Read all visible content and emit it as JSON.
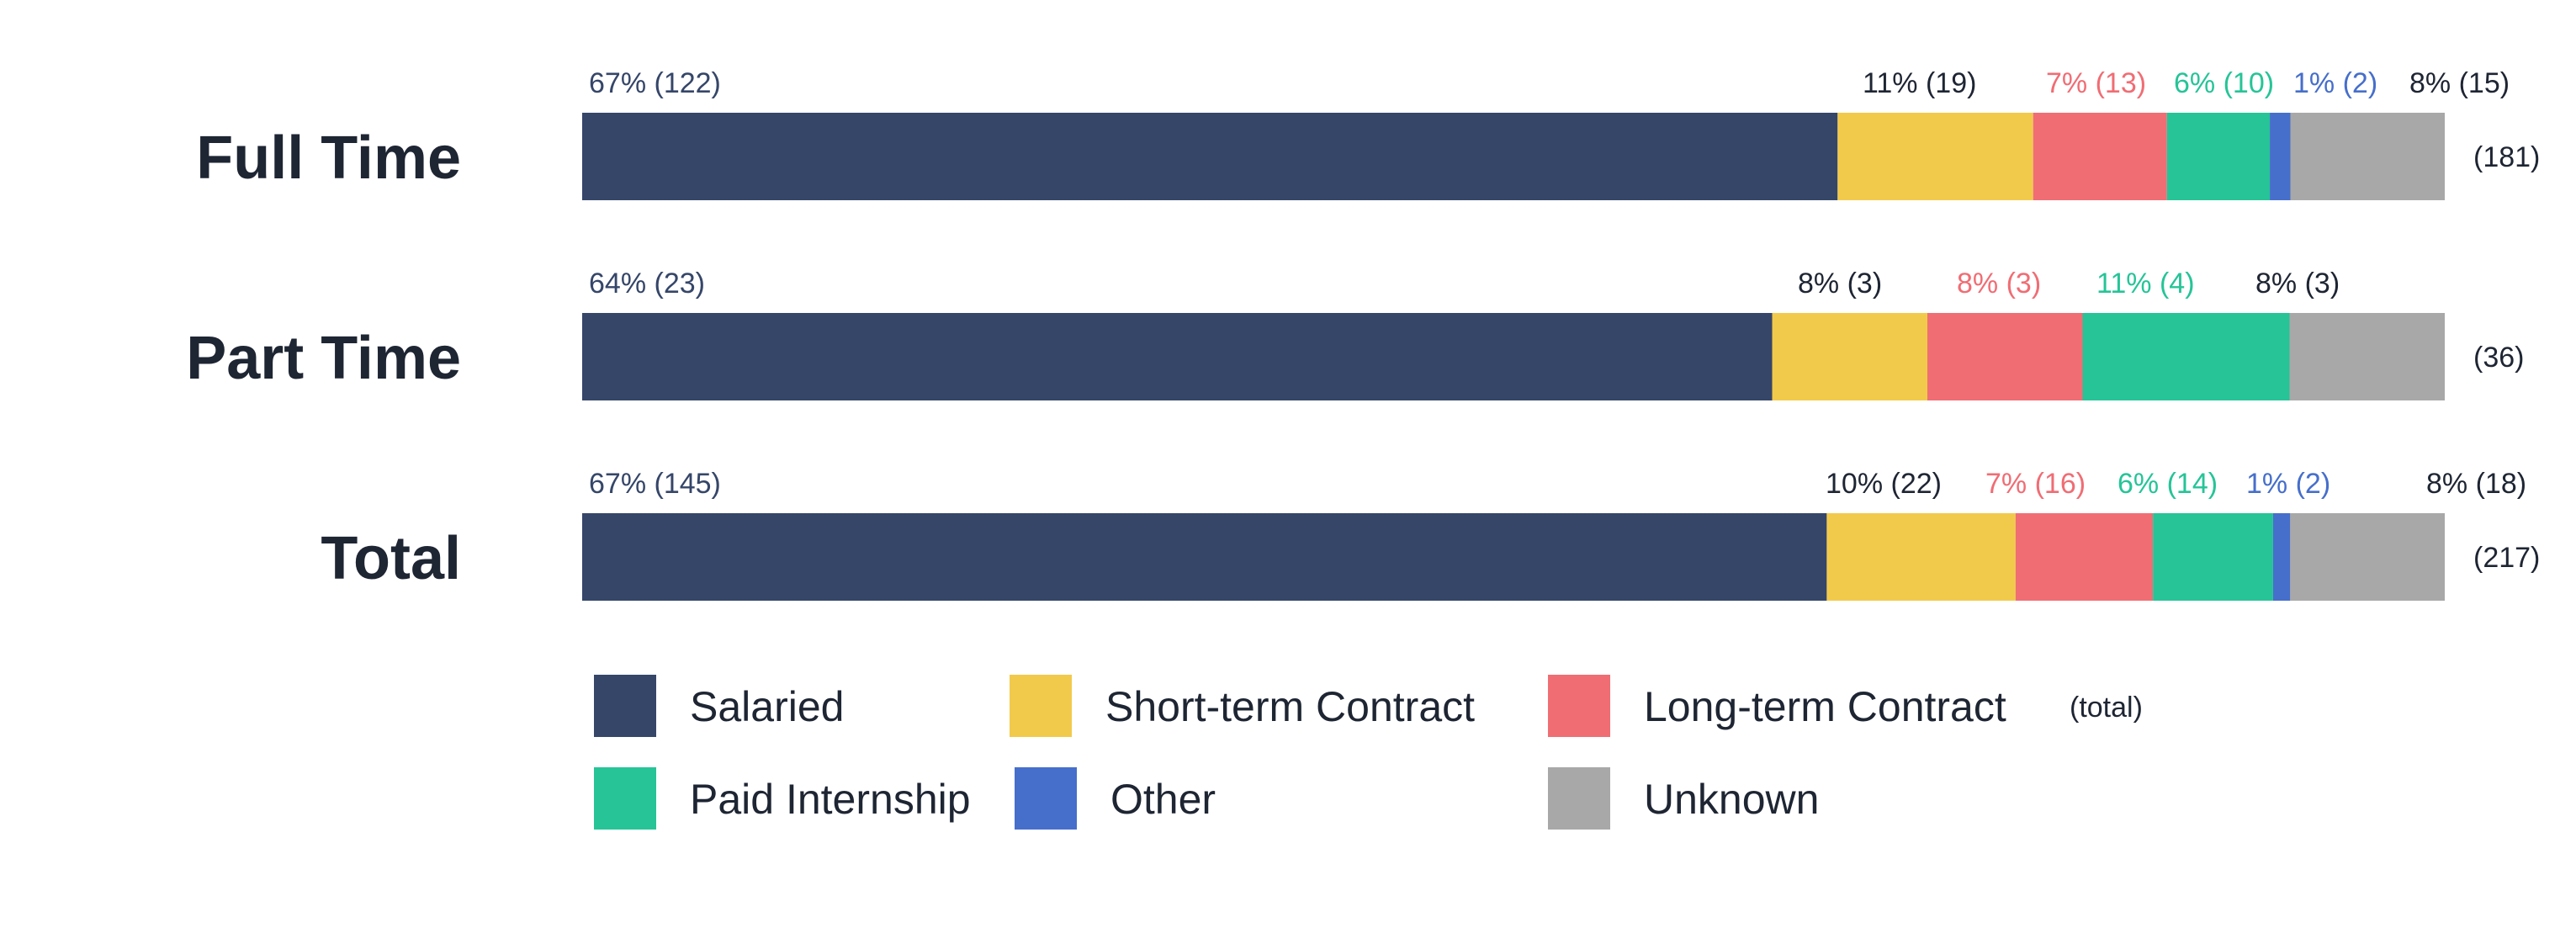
{
  "chart_data": {
    "type": "bar",
    "orientation": "horizontal",
    "stacked": true,
    "normalized": true,
    "categories": [
      "Full Time",
      "Part Time",
      "Total"
    ],
    "series": [
      {
        "name": "Salaried",
        "color": "#354669",
        "values": [
          122,
          23,
          145
        ],
        "percent_labels": [
          "67%",
          "64%",
          "67%"
        ]
      },
      {
        "name": "Short-term Contract",
        "color": "#f2ca4b",
        "values": [
          19,
          3,
          22
        ],
        "percent_labels": [
          "11%",
          "8%",
          "10%"
        ]
      },
      {
        "name": "Long-term Contract",
        "color": "#f06d74",
        "values": [
          13,
          3,
          16
        ],
        "percent_labels": [
          "7%",
          "8%",
          "7%"
        ]
      },
      {
        "name": "Paid Internship",
        "color": "#26c497",
        "values": [
          10,
          4,
          14
        ],
        "percent_labels": [
          "6%",
          "11%",
          "6%"
        ]
      },
      {
        "name": "Other",
        "color": "#466fcb",
        "values": [
          2,
          0,
          2
        ],
        "percent_labels": [
          "1%",
          "",
          "1%"
        ]
      },
      {
        "name": "Unknown",
        "color": "#a8a8a8",
        "values": [
          15,
          3,
          18
        ],
        "percent_labels": [
          "8%",
          "8%",
          "8%"
        ]
      }
    ],
    "row_totals": [
      "(181)",
      "(36)",
      "(217)"
    ],
    "legend_note": "(total)",
    "legend_placement": "bottom",
    "label_colors": {
      "dark": "#1e2533",
      "salaried": "#354669",
      "long_term": "#f06d74",
      "internship": "#26c497",
      "other": "#466fcb"
    },
    "grid": false
  }
}
